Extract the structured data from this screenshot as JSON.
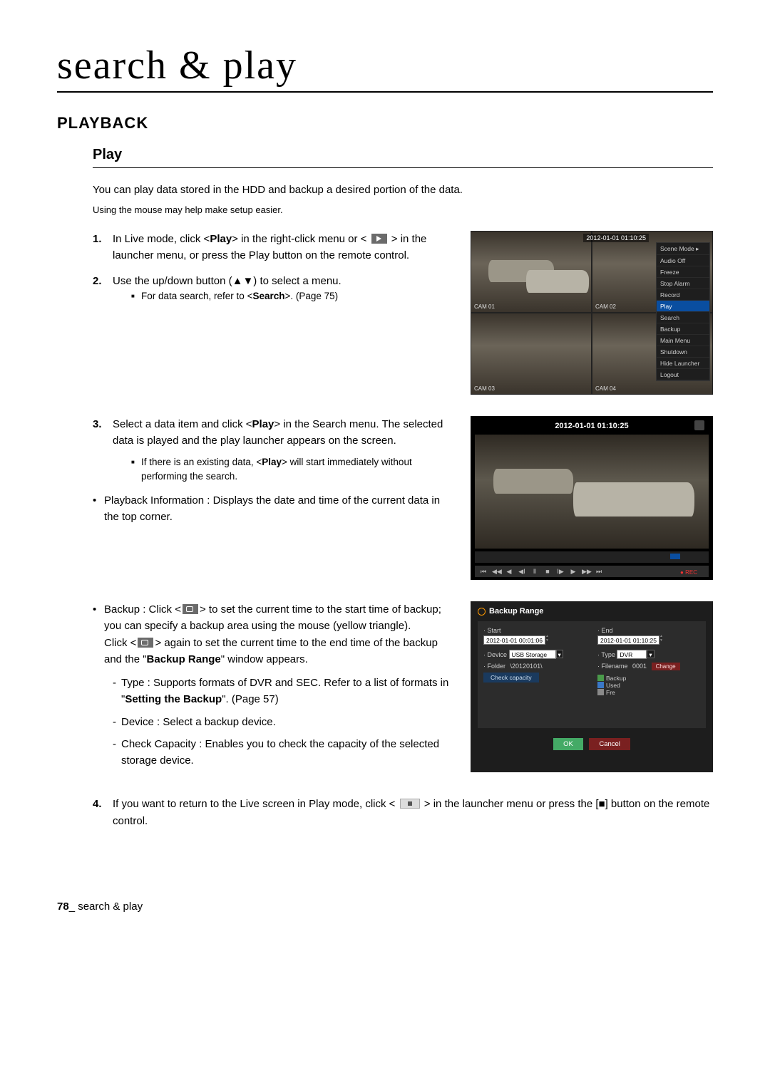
{
  "title": "search & play",
  "section": "PLAYBACK",
  "sub": "Play",
  "intro1": "You can play data stored in the HDD and backup a desired portion of the data.",
  "intro2": "Using the mouse may help make setup easier.",
  "steps": {
    "s1a": "In Live mode, click <",
    "s1_play": "Play",
    "s1b": "> in the right-click menu or <",
    "s1c": "> in the launcher menu, or press the Play button on the remote control.",
    "s2a": "Use the up/down button (▲▼) to select a menu.",
    "s2_sub": "For data search, refer to <",
    "s2_search": "Search",
    "s2_sub2": ">. (Page 75)",
    "s3a": "Select a data item and click <",
    "s3b": "> in the Search menu. The selected data is played and the play launcher appears on the screen.",
    "s3_sub": "If there is an existing data, <",
    "s3_sub2": "> will start immediately without performing the search.",
    "s3_pbinfo": "Playback Information : Displays the date and time of the current data in the top corner.",
    "s4a": "If you want to return to the Live screen in Play mode, click <",
    "s4b": "> in the launcher menu or press the [■] button on the remote control."
  },
  "backup": {
    "p1": "Backup : Click <",
    "p2": "> to set the current time to the start time of backup; you can specify a backup area using the mouse (yellow triangle).",
    "p3": "Click <",
    "p4": "> again to set the current time to the end time of the backup and the \"",
    "p4b": "Backup Range",
    "p4c": "\" window appears.",
    "d1a": "Type : Supports formats of DVR and SEC. Refer to a list of formats in \"",
    "d1b": "Setting the Backup",
    "d1c": "\". (Page 57)",
    "d2": "Device : Select a backup device.",
    "d3": "Check Capacity : Enables you to check the capacity of the selected storage device."
  },
  "ss1": {
    "timestamp": "2012-01-01 01:10:25",
    "cams": [
      "CAM 01",
      "CAM 02",
      "CAM 03",
      "CAM 04"
    ],
    "menu": [
      "Scene Mode  ▸",
      "Audio Off",
      "Freeze",
      "Stop Alarm",
      "Record",
      "Play",
      "Search",
      "Backup",
      "Main Menu",
      "Shutdown",
      "Hide Launcher",
      "Logout"
    ],
    "hl_index": 5
  },
  "ss2": {
    "timestamp": "2012-01-01 01:10:25",
    "controls": [
      "⏮",
      "◀◀",
      "◀",
      "◀Ⅰ",
      "Ⅱ",
      "■",
      "Ⅰ▶",
      "▶",
      "▶▶",
      "⏭"
    ],
    "rec": "● REC"
  },
  "ss3": {
    "title": "Backup Range",
    "start_lbl": "· Start",
    "end_lbl": "· End",
    "start_val": "2012-01-01 00:01:06",
    "end_val": "2012-01-01 01:10:25",
    "device_lbl": "· Device",
    "device_val": "USB Storage",
    "type_lbl": "· Type",
    "type_val": "DVR",
    "folder_lbl": "· Folder",
    "folder_val": "\\20120101\\",
    "filename_lbl": "· Filename",
    "filename_val": "0001",
    "change": "Change",
    "check": "Check capacity",
    "legend": [
      "Backup",
      "Used",
      "Fre"
    ],
    "legend_colors": [
      "#4a9a4a",
      "#3a78c8",
      "#8a8a8a"
    ],
    "ok": "OK",
    "cancel": "Cancel"
  },
  "footer": {
    "page": "78",
    "label": "_ search & play"
  }
}
